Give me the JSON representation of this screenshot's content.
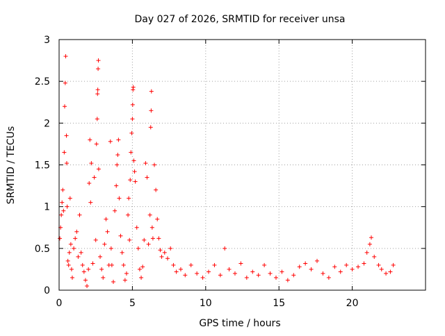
{
  "chart_data": {
    "type": "scatter",
    "title": "Day 027 of 2026, SRMTID for receiver unsa",
    "xlabel": "GPS time / hours",
    "ylabel": "SRMTID / TECUs",
    "xlim": [
      0,
      25
    ],
    "ylim": [
      0,
      3
    ],
    "xticks": [
      0,
      5,
      10,
      15,
      20
    ],
    "xtick_labels": [
      "0",
      "5",
      "10",
      "15",
      "20"
    ],
    "yticks": [
      0,
      0.5,
      1,
      1.5,
      2,
      2.5,
      3
    ],
    "ytick_labels": [
      "0",
      "0.5",
      "1",
      "1.5",
      "2",
      "2.5",
      "3"
    ],
    "grid": true,
    "marker": "+",
    "color": "#ff0000",
    "series": [
      {
        "name": "SRMTID",
        "points": [
          [
            0.05,
            0.62
          ],
          [
            0.1,
            0.75
          ],
          [
            0.15,
            0.9
          ],
          [
            0.2,
            1.05
          ],
          [
            0.25,
            1.2
          ],
          [
            0.3,
            0.95
          ],
          [
            0.35,
            1.65
          ],
          [
            0.38,
            2.2
          ],
          [
            0.42,
            2.48
          ],
          [
            0.45,
            2.8
          ],
          [
            0.5,
            1.85
          ],
          [
            0.52,
            1.52
          ],
          [
            0.55,
            1.0
          ],
          [
            0.6,
            0.35
          ],
          [
            0.65,
            0.3
          ],
          [
            0.7,
            0.45
          ],
          [
            0.75,
            1.1
          ],
          [
            0.8,
            0.55
          ],
          [
            0.85,
            0.25
          ],
          [
            0.9,
            0.15
          ],
          [
            1.0,
            0.5
          ],
          [
            1.1,
            0.62
          ],
          [
            1.2,
            0.7
          ],
          [
            1.3,
            0.4
          ],
          [
            1.4,
            0.9
          ],
          [
            1.5,
            0.45
          ],
          [
            1.6,
            0.3
          ],
          [
            1.7,
            0.22
          ],
          [
            1.8,
            0.12
          ],
          [
            1.9,
            0.05
          ],
          [
            2.0,
            0.25
          ],
          [
            2.05,
            1.28
          ],
          [
            2.1,
            1.8
          ],
          [
            2.15,
            1.05
          ],
          [
            2.2,
            1.52
          ],
          [
            2.3,
            0.32
          ],
          [
            2.4,
            1.35
          ],
          [
            2.5,
            0.6
          ],
          [
            2.55,
            1.75
          ],
          [
            2.6,
            2.05
          ],
          [
            2.62,
            2.35
          ],
          [
            2.64,
            2.4
          ],
          [
            2.66,
            2.65
          ],
          [
            2.68,
            2.75
          ],
          [
            2.7,
            1.45
          ],
          [
            2.8,
            0.4
          ],
          [
            2.9,
            0.25
          ],
          [
            3.0,
            0.15
          ],
          [
            3.1,
            0.55
          ],
          [
            3.2,
            0.85
          ],
          [
            3.3,
            0.7
          ],
          [
            3.4,
            0.3
          ],
          [
            3.5,
            1.78
          ],
          [
            3.55,
            0.5
          ],
          [
            3.6,
            0.3
          ],
          [
            3.7,
            0.1
          ],
          [
            3.8,
            0.95
          ],
          [
            3.9,
            1.25
          ],
          [
            3.95,
            1.5
          ],
          [
            4.0,
            1.62
          ],
          [
            4.05,
            1.8
          ],
          [
            4.1,
            1.1
          ],
          [
            4.2,
            0.65
          ],
          [
            4.3,
            0.45
          ],
          [
            4.4,
            0.3
          ],
          [
            4.5,
            0.12
          ],
          [
            4.6,
            0.2
          ],
          [
            4.7,
            0.9
          ],
          [
            4.75,
            1.1
          ],
          [
            4.8,
            0.6
          ],
          [
            4.85,
            1.32
          ],
          [
            4.9,
            1.65
          ],
          [
            4.95,
            1.88
          ],
          [
            5.0,
            2.05
          ],
          [
            5.02,
            2.22
          ],
          [
            5.04,
            2.4
          ],
          [
            5.06,
            2.43
          ],
          [
            5.1,
            1.55
          ],
          [
            5.15,
            1.42
          ],
          [
            5.2,
            1.3
          ],
          [
            5.3,
            0.75
          ],
          [
            5.4,
            0.5
          ],
          [
            5.5,
            0.25
          ],
          [
            5.6,
            0.15
          ],
          [
            5.7,
            0.28
          ],
          [
            5.8,
            0.6
          ],
          [
            5.9,
            1.52
          ],
          [
            6.0,
            1.35
          ],
          [
            6.1,
            0.55
          ],
          [
            6.2,
            0.9
          ],
          [
            6.25,
            1.95
          ],
          [
            6.28,
            2.15
          ],
          [
            6.3,
            2.38
          ],
          [
            6.35,
            0.75
          ],
          [
            6.4,
            0.62
          ],
          [
            6.5,
            1.5
          ],
          [
            6.6,
            1.2
          ],
          [
            6.7,
            0.85
          ],
          [
            6.8,
            0.62
          ],
          [
            6.9,
            0.48
          ],
          [
            7.0,
            0.4
          ],
          [
            7.2,
            0.45
          ],
          [
            7.4,
            0.38
          ],
          [
            7.6,
            0.5
          ],
          [
            7.8,
            0.3
          ],
          [
            8.0,
            0.22
          ],
          [
            8.3,
            0.25
          ],
          [
            8.6,
            0.18
          ],
          [
            9.0,
            0.3
          ],
          [
            9.4,
            0.2
          ],
          [
            9.8,
            0.15
          ],
          [
            10.2,
            0.22
          ],
          [
            10.6,
            0.3
          ],
          [
            11.0,
            0.18
          ],
          [
            11.3,
            0.5
          ],
          [
            11.6,
            0.25
          ],
          [
            12.0,
            0.2
          ],
          [
            12.4,
            0.32
          ],
          [
            12.8,
            0.15
          ],
          [
            13.2,
            0.22
          ],
          [
            13.6,
            0.18
          ],
          [
            14.0,
            0.3
          ],
          [
            14.4,
            0.2
          ],
          [
            14.8,
            0.15
          ],
          [
            15.2,
            0.22
          ],
          [
            15.6,
            0.12
          ],
          [
            16.0,
            0.18
          ],
          [
            16.4,
            0.28
          ],
          [
            16.8,
            0.32
          ],
          [
            17.2,
            0.25
          ],
          [
            17.6,
            0.35
          ],
          [
            18.0,
            0.2
          ],
          [
            18.4,
            0.15
          ],
          [
            18.8,
            0.28
          ],
          [
            19.2,
            0.22
          ],
          [
            19.6,
            0.3
          ],
          [
            20.0,
            0.25
          ],
          [
            20.4,
            0.28
          ],
          [
            20.8,
            0.32
          ],
          [
            21.0,
            0.45
          ],
          [
            21.2,
            0.55
          ],
          [
            21.3,
            0.63
          ],
          [
            21.5,
            0.4
          ],
          [
            21.8,
            0.3
          ],
          [
            22.0,
            0.25
          ],
          [
            22.3,
            0.2
          ],
          [
            22.6,
            0.22
          ],
          [
            22.8,
            0.3
          ]
        ]
      }
    ]
  }
}
